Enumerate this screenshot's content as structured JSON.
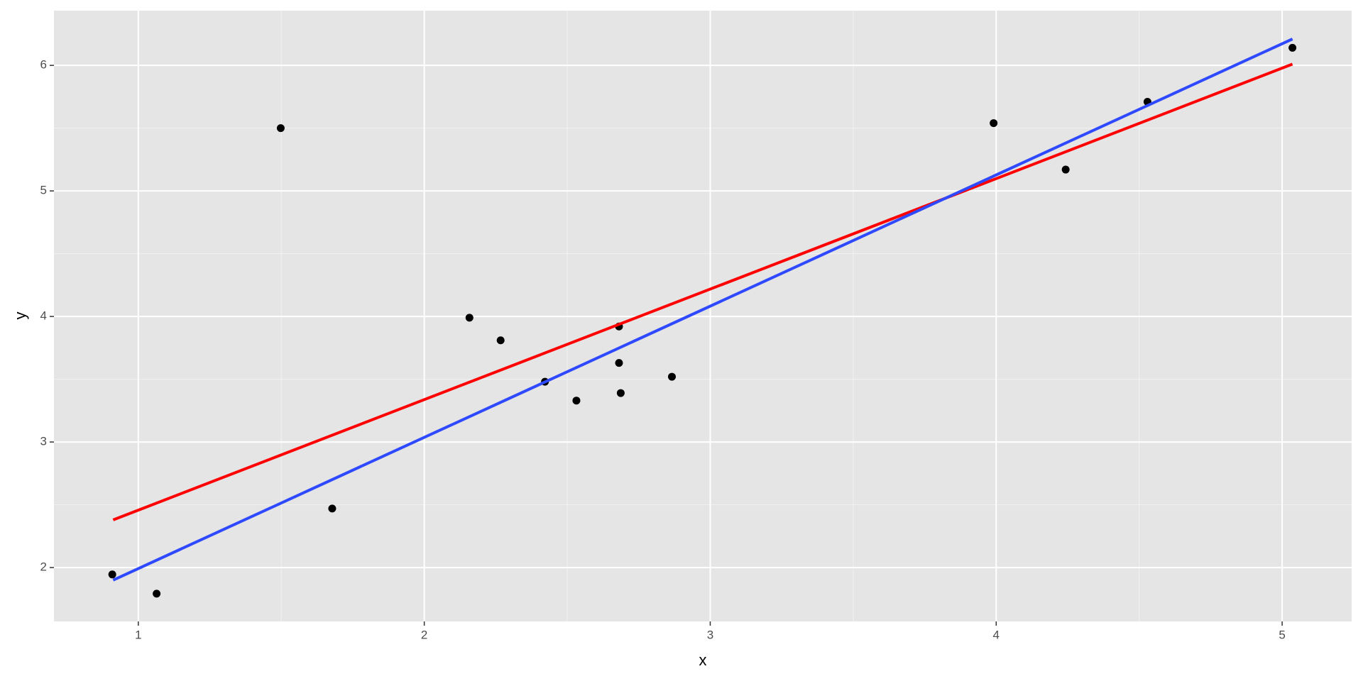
{
  "chart_data": {
    "type": "scatter",
    "x_label": "x",
    "y_label": "y",
    "xlim": [
      0.705,
      5.243
    ],
    "ylim": [
      1.571,
      6.436
    ],
    "xticks": [
      1,
      2,
      3,
      4,
      5
    ],
    "yticks": [
      2,
      3,
      4,
      5,
      6
    ],
    "grid": true,
    "minor_grid": true,
    "points": {
      "color": "#000000",
      "x": [
        0.909,
        1.064,
        1.498,
        1.678,
        2.158,
        2.267,
        2.422,
        2.532,
        2.681,
        2.681,
        2.687,
        2.866,
        3.991,
        4.243,
        4.529,
        5.036
      ],
      "values": [
        1.945,
        1.792,
        5.5,
        2.47,
        3.99,
        3.81,
        3.48,
        3.33,
        3.92,
        3.63,
        3.39,
        3.52,
        5.54,
        5.17,
        5.71,
        6.14
      ]
    },
    "lines": [
      {
        "color": "#ff0000",
        "x": [
          0.912,
          5.036
        ],
        "values": [
          2.38,
          6.01
        ]
      },
      {
        "color": "#2e49ff",
        "x": [
          0.912,
          5.036
        ],
        "values": [
          1.9,
          6.21
        ]
      }
    ]
  }
}
